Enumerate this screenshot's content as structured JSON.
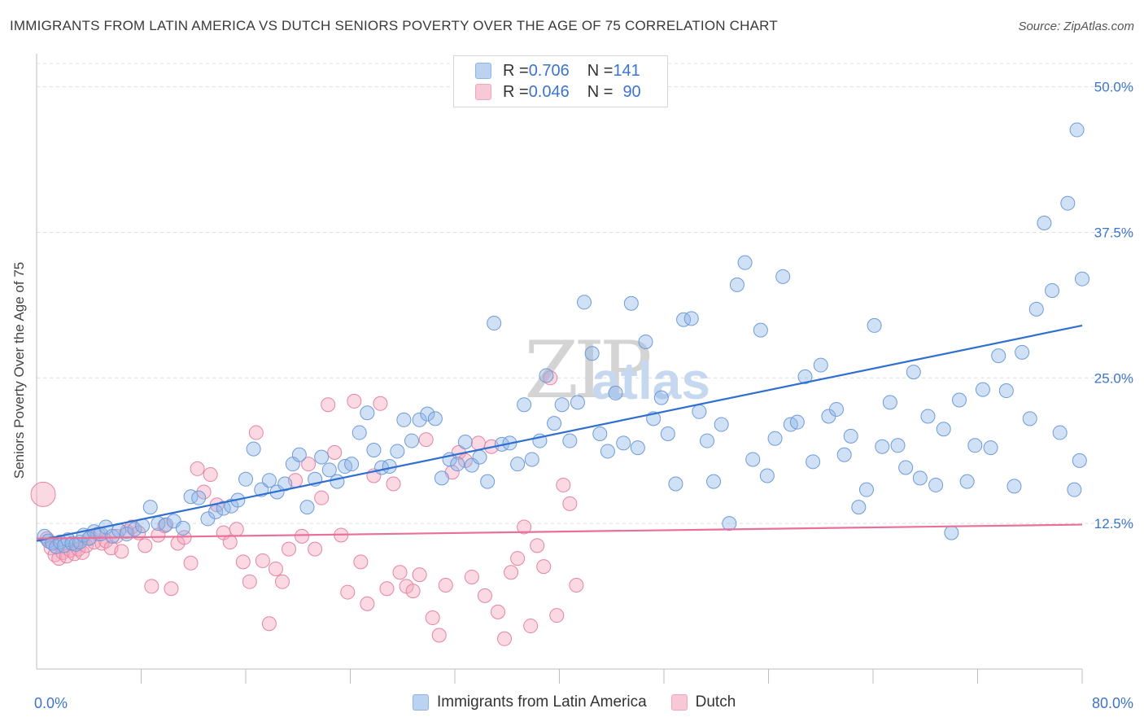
{
  "title": "IMMIGRANTS FROM LATIN AMERICA VS DUTCH SENIORS POVERTY OVER THE AGE OF 75 CORRELATION CHART",
  "source": "Source: ZipAtlas.com",
  "watermark": {
    "zip": "ZIP",
    "atlas": "atlas"
  },
  "legend_top": {
    "rows": [
      {
        "r_label": "R = ",
        "r_value": "0.706",
        "n_label": "N = ",
        "n_value": "141",
        "color": "#8fb4e8"
      },
      {
        "r_label": "R = ",
        "r_value": "0.046",
        "n_label": "N = ",
        "n_value": "90",
        "color": "#f2a5bd"
      }
    ]
  },
  "legend_bottom": [
    {
      "label": "Immigrants from Latin America",
      "color": "#8fb4e8"
    },
    {
      "label": "Dutch",
      "color": "#f2a5bd"
    }
  ],
  "chart_data": {
    "type": "scatter",
    "title": "IMMIGRANTS FROM LATIN AMERICA VS DUTCH SENIORS POVERTY OVER THE AGE OF 75 CORRELATION CHART",
    "xlabel": "",
    "ylabel": "Seniors Poverty Over the Age of 75",
    "xlim": [
      0,
      80
    ],
    "ylim": [
      0,
      52
    ],
    "x_tick_labels": [
      {
        "value": 0,
        "label": "0.0%"
      },
      {
        "value": 80,
        "label": "80.0%"
      }
    ],
    "y_tick_labels": [
      {
        "value": 12.5,
        "label": "12.5%"
      },
      {
        "value": 25,
        "label": "25.0%"
      },
      {
        "value": 37.5,
        "label": "37.5%"
      },
      {
        "value": 50,
        "label": "50.0%"
      }
    ],
    "grid": true,
    "series": [
      {
        "name": "Immigrants from Latin America",
        "color": "#8fb4e8",
        "stroke": "#6f9bd8",
        "line_color": "#2f6fd0",
        "trend": {
          "x": [
            0,
            80
          ],
          "y": [
            11.0,
            29.5
          ]
        },
        "points": [
          [
            0.6,
            11.4
          ],
          [
            0.9,
            11.0
          ],
          [
            1.2,
            10.8
          ],
          [
            1.5,
            10.5
          ],
          [
            1.8,
            10.9
          ],
          [
            2.1,
            10.6
          ],
          [
            2.4,
            11.1
          ],
          [
            2.7,
            10.8
          ],
          [
            3.0,
            10.7
          ],
          [
            3.3,
            10.9
          ],
          [
            3.6,
            11.5
          ],
          [
            4.0,
            11.2
          ],
          [
            4.4,
            11.8
          ],
          [
            4.9,
            11.6
          ],
          [
            5.3,
            12.2
          ],
          [
            5.8,
            11.4
          ],
          [
            6.3,
            11.9
          ],
          [
            6.9,
            11.6
          ],
          [
            7.5,
            12.0
          ],
          [
            8.1,
            12.3
          ],
          [
            8.7,
            13.9
          ],
          [
            9.3,
            12.5
          ],
          [
            9.9,
            12.4
          ],
          [
            10.5,
            12.7
          ],
          [
            11.2,
            12.1
          ],
          [
            11.8,
            14.8
          ],
          [
            12.4,
            14.7
          ],
          [
            13.1,
            12.9
          ],
          [
            13.7,
            13.5
          ],
          [
            14.3,
            13.8
          ],
          [
            14.9,
            14.0
          ],
          [
            15.4,
            14.5
          ],
          [
            16.0,
            16.3
          ],
          [
            16.6,
            18.9
          ],
          [
            17.2,
            15.4
          ],
          [
            17.8,
            16.2
          ],
          [
            18.4,
            15.2
          ],
          [
            19.0,
            15.9
          ],
          [
            19.6,
            17.6
          ],
          [
            20.1,
            18.4
          ],
          [
            20.7,
            13.9
          ],
          [
            21.3,
            16.3
          ],
          [
            21.8,
            18.2
          ],
          [
            22.4,
            17.1
          ],
          [
            23.0,
            16.1
          ],
          [
            23.6,
            17.4
          ],
          [
            24.1,
            17.6
          ],
          [
            24.7,
            20.3
          ],
          [
            25.3,
            22.0
          ],
          [
            25.8,
            18.8
          ],
          [
            26.4,
            17.3
          ],
          [
            27.0,
            17.4
          ],
          [
            27.6,
            18.7
          ],
          [
            28.1,
            21.4
          ],
          [
            28.7,
            19.6
          ],
          [
            29.3,
            21.4
          ],
          [
            29.9,
            21.9
          ],
          [
            30.5,
            21.5
          ],
          [
            31.0,
            16.4
          ],
          [
            31.6,
            18.0
          ],
          [
            32.2,
            17.6
          ],
          [
            32.8,
            19.5
          ],
          [
            33.3,
            17.5
          ],
          [
            33.9,
            18.2
          ],
          [
            34.5,
            16.1
          ],
          [
            35.0,
            29.7
          ],
          [
            35.6,
            19.3
          ],
          [
            36.2,
            19.4
          ],
          [
            36.8,
            17.6
          ],
          [
            37.3,
            22.7
          ],
          [
            37.9,
            18.0
          ],
          [
            38.5,
            19.6
          ],
          [
            39.0,
            25.2
          ],
          [
            39.6,
            21.1
          ],
          [
            40.2,
            22.7
          ],
          [
            40.8,
            19.6
          ],
          [
            41.4,
            22.9
          ],
          [
            41.9,
            31.5
          ],
          [
            42.5,
            27.1
          ],
          [
            43.1,
            20.2
          ],
          [
            43.7,
            18.7
          ],
          [
            44.3,
            23.7
          ],
          [
            44.9,
            19.4
          ],
          [
            45.5,
            31.4
          ],
          [
            46.0,
            19.0
          ],
          [
            46.6,
            28.1
          ],
          [
            47.2,
            21.5
          ],
          [
            47.8,
            23.3
          ],
          [
            48.3,
            20.2
          ],
          [
            48.9,
            15.9
          ],
          [
            49.5,
            30.0
          ],
          [
            50.1,
            30.1
          ],
          [
            50.7,
            22.1
          ],
          [
            51.3,
            19.6
          ],
          [
            51.8,
            16.1
          ],
          [
            52.4,
            21.0
          ],
          [
            53.0,
            12.5
          ],
          [
            53.6,
            33.0
          ],
          [
            54.2,
            34.9
          ],
          [
            54.8,
            18.0
          ],
          [
            55.4,
            29.1
          ],
          [
            55.9,
            16.6
          ],
          [
            56.5,
            19.8
          ],
          [
            57.1,
            33.7
          ],
          [
            57.7,
            21.0
          ],
          [
            58.2,
            21.2
          ],
          [
            58.8,
            25.1
          ],
          [
            59.4,
            17.8
          ],
          [
            60.0,
            26.1
          ],
          [
            60.6,
            21.7
          ],
          [
            61.2,
            22.3
          ],
          [
            61.8,
            18.4
          ],
          [
            62.3,
            20.0
          ],
          [
            62.9,
            13.9
          ],
          [
            63.5,
            15.4
          ],
          [
            64.1,
            29.5
          ],
          [
            64.7,
            19.1
          ],
          [
            65.3,
            22.9
          ],
          [
            65.9,
            19.2
          ],
          [
            66.5,
            17.3
          ],
          [
            67.1,
            25.5
          ],
          [
            67.6,
            16.4
          ],
          [
            68.2,
            21.7
          ],
          [
            68.8,
            15.8
          ],
          [
            69.4,
            20.6
          ],
          [
            70.0,
            11.7
          ],
          [
            70.6,
            23.1
          ],
          [
            71.2,
            16.1
          ],
          [
            71.8,
            19.2
          ],
          [
            72.4,
            24.0
          ],
          [
            73.0,
            19.0
          ],
          [
            73.6,
            26.9
          ],
          [
            74.2,
            23.9
          ],
          [
            74.8,
            15.7
          ],
          [
            75.4,
            27.2
          ],
          [
            76.0,
            21.5
          ],
          [
            76.5,
            30.9
          ],
          [
            77.1,
            38.3
          ],
          [
            77.7,
            32.5
          ],
          [
            78.3,
            20.3
          ],
          [
            78.9,
            40.0
          ],
          [
            79.4,
            15.4
          ],
          [
            79.6,
            46.3
          ],
          [
            79.8,
            17.9
          ],
          [
            80.0,
            33.5
          ]
        ]
      },
      {
        "name": "Dutch",
        "color": "#f2a5bd",
        "stroke": "#e683a3",
        "line_color": "#e8709a",
        "trend": {
          "x": [
            0,
            80
          ],
          "y": [
            11.2,
            12.4
          ]
        },
        "points": [
          [
            0.5,
            15.0
          ],
          [
            0.8,
            11.2
          ],
          [
            1.1,
            10.4
          ],
          [
            1.4,
            9.8
          ],
          [
            1.7,
            9.5
          ],
          [
            2.0,
            10.0
          ],
          [
            2.3,
            9.7
          ],
          [
            2.6,
            10.2
          ],
          [
            2.9,
            9.9
          ],
          [
            3.2,
            10.3
          ],
          [
            3.5,
            10.0
          ],
          [
            3.8,
            10.6
          ],
          [
            4.1,
            11.3
          ],
          [
            4.4,
            10.9
          ],
          [
            4.7,
            11.6
          ],
          [
            5.0,
            10.8
          ],
          [
            5.3,
            11.0
          ],
          [
            5.7,
            10.4
          ],
          [
            6.1,
            11.4
          ],
          [
            6.5,
            10.1
          ],
          [
            6.9,
            11.8
          ],
          [
            7.3,
            12.2
          ],
          [
            7.8,
            11.7
          ],
          [
            8.3,
            10.6
          ],
          [
            8.8,
            7.1
          ],
          [
            9.3,
            11.5
          ],
          [
            9.8,
            12.3
          ],
          [
            10.3,
            6.9
          ],
          [
            10.8,
            10.8
          ],
          [
            11.3,
            11.3
          ],
          [
            11.8,
            9.1
          ],
          [
            12.3,
            17.2
          ],
          [
            12.8,
            15.2
          ],
          [
            13.3,
            16.7
          ],
          [
            13.8,
            14.1
          ],
          [
            14.3,
            11.7
          ],
          [
            14.8,
            10.9
          ],
          [
            15.3,
            12.0
          ],
          [
            15.8,
            9.2
          ],
          [
            16.3,
            7.5
          ],
          [
            16.8,
            20.3
          ],
          [
            17.3,
            9.3
          ],
          [
            17.8,
            3.9
          ],
          [
            18.3,
            8.6
          ],
          [
            18.8,
            7.5
          ],
          [
            19.3,
            10.3
          ],
          [
            19.8,
            16.2
          ],
          [
            20.3,
            11.4
          ],
          [
            20.8,
            17.6
          ],
          [
            21.3,
            10.3
          ],
          [
            21.8,
            14.7
          ],
          [
            22.3,
            22.7
          ],
          [
            22.8,
            18.6
          ],
          [
            23.3,
            11.5
          ],
          [
            23.8,
            6.6
          ],
          [
            24.3,
            23.0
          ],
          [
            24.8,
            9.2
          ],
          [
            25.3,
            5.6
          ],
          [
            25.8,
            16.6
          ],
          [
            26.3,
            22.8
          ],
          [
            26.8,
            6.9
          ],
          [
            27.3,
            15.9
          ],
          [
            27.8,
            8.3
          ],
          [
            28.3,
            7.1
          ],
          [
            28.8,
            6.7
          ],
          [
            29.3,
            8.1
          ],
          [
            29.8,
            19.7
          ],
          [
            30.3,
            4.4
          ],
          [
            30.8,
            2.9
          ],
          [
            31.3,
            7.2
          ],
          [
            31.8,
            16.9
          ],
          [
            32.3,
            18.6
          ],
          [
            32.8,
            17.9
          ],
          [
            33.3,
            7.9
          ],
          [
            33.8,
            19.4
          ],
          [
            34.3,
            6.3
          ],
          [
            34.8,
            19.1
          ],
          [
            35.3,
            4.9
          ],
          [
            35.8,
            2.6
          ],
          [
            36.3,
            8.3
          ],
          [
            36.8,
            9.5
          ],
          [
            37.3,
            12.2
          ],
          [
            37.8,
            3.7
          ],
          [
            38.3,
            10.6
          ],
          [
            38.8,
            8.8
          ],
          [
            39.3,
            25.0
          ],
          [
            39.8,
            4.6
          ],
          [
            40.3,
            15.8
          ],
          [
            40.8,
            14.2
          ],
          [
            41.3,
            7.2
          ]
        ]
      }
    ]
  }
}
